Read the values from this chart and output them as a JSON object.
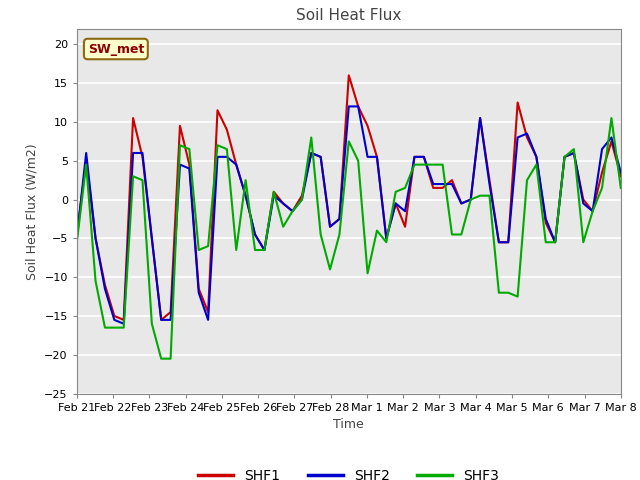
{
  "title": "Soil Heat Flux",
  "ylabel": "Soil Heat Flux (W/m2)",
  "xlabel": "Time",
  "ylim": [
    -25,
    22
  ],
  "yticks": [
    -25,
    -20,
    -15,
    -10,
    -5,
    0,
    5,
    10,
    15,
    20
  ],
  "fig_bg_color": "#ffffff",
  "plot_bg_color": "#e8e8e8",
  "annotation_text": "SW_met",
  "annotation_bg": "#ffffcc",
  "annotation_border": "#8b6914",
  "annotation_text_color": "#8b0000",
  "x_tick_labels": [
    "Feb 21",
    "Feb 22",
    "Feb 23",
    "Feb 24",
    "Feb 25",
    "Feb 26",
    "Feb 27",
    "Feb 28",
    "Mar 1",
    "Mar 2",
    "Mar 3",
    "Mar 4",
    "Mar 5",
    "Mar 6",
    "Mar 7",
    "Mar 8"
  ],
  "shf1_color": "#cc0000",
  "shf2_color": "#0000cc",
  "shf3_color": "#00aa00",
  "shf1": [
    -4.5,
    5.0,
    -5.0,
    -11.0,
    -15.0,
    -15.5,
    10.5,
    5.5,
    -5.0,
    -15.5,
    -14.5,
    9.5,
    4.5,
    -11.5,
    -14.5,
    11.5,
    9.0,
    4.5,
    0.5,
    -4.5,
    -6.5,
    1.0,
    -0.5,
    -1.5,
    0.5,
    6.0,
    5.5,
    -3.5,
    -2.5,
    16.0,
    12.0,
    9.5,
    5.5,
    -5.0,
    -0.5,
    -3.5,
    5.5,
    5.5,
    1.5,
    1.5,
    2.5,
    -0.5,
    0.0,
    10.5,
    2.5,
    -5.5,
    -5.5,
    12.5,
    8.0,
    5.5,
    -3.0,
    -5.5,
    5.5,
    6.0,
    0.0,
    -1.5,
    3.5,
    7.5,
    3.0
  ],
  "shf2": [
    -5.0,
    6.0,
    -5.0,
    -11.5,
    -15.5,
    -16.0,
    6.0,
    6.0,
    -5.0,
    -15.5,
    -15.5,
    4.5,
    4.0,
    -12.0,
    -15.5,
    5.5,
    5.5,
    4.5,
    0.5,
    -4.5,
    -6.5,
    0.5,
    -0.5,
    -1.5,
    0.0,
    6.0,
    5.5,
    -3.5,
    -2.5,
    12.0,
    12.0,
    5.5,
    5.5,
    -5.0,
    -0.5,
    -1.5,
    5.5,
    5.5,
    2.0,
    2.0,
    2.0,
    -0.5,
    0.0,
    10.5,
    2.0,
    -5.5,
    -5.5,
    8.0,
    8.5,
    5.5,
    -2.5,
    -5.5,
    5.5,
    6.0,
    -0.5,
    -1.5,
    6.5,
    8.0,
    3.5
  ],
  "shf3": [
    -5.5,
    4.5,
    -10.5,
    -16.5,
    -16.5,
    -16.5,
    3.0,
    2.5,
    -16.0,
    -20.5,
    -20.5,
    7.0,
    6.5,
    -6.5,
    -6.0,
    7.0,
    6.5,
    -6.5,
    2.5,
    -6.5,
    -6.5,
    1.0,
    -3.5,
    -1.5,
    0.0,
    8.0,
    -4.5,
    -9.0,
    -4.5,
    7.5,
    5.0,
    -9.5,
    -4.0,
    -5.5,
    1.0,
    1.5,
    4.5,
    4.5,
    4.5,
    4.5,
    -4.5,
    -4.5,
    0.0,
    0.5,
    0.5,
    -12.0,
    -12.0,
    -12.5,
    2.5,
    4.5,
    -5.5,
    -5.5,
    5.5,
    6.5,
    -5.5,
    -1.5,
    1.5,
    10.5,
    1.5
  ],
  "line_width": 1.5,
  "title_fontsize": 11,
  "tick_fontsize": 8,
  "label_fontsize": 9,
  "legend_fontsize": 10,
  "grid_color": "#ffffff",
  "grid_linewidth": 1.2
}
